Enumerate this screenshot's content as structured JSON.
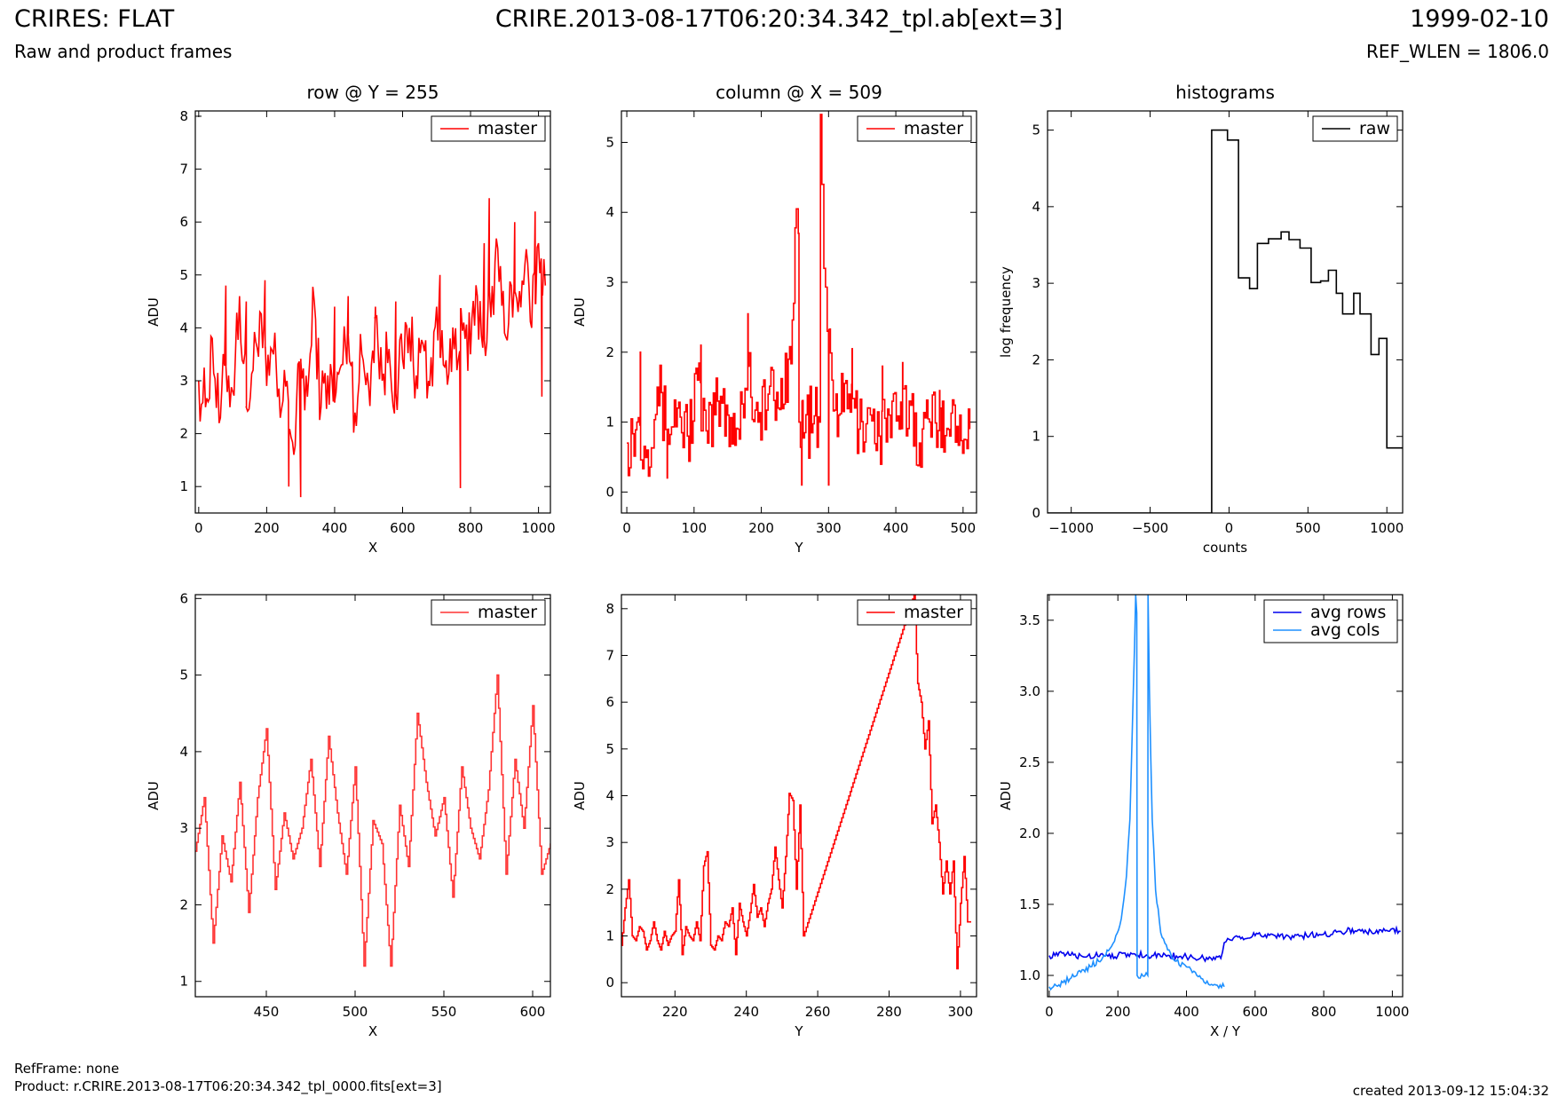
{
  "header": {
    "title": "CRIRES: FLAT",
    "subtitle": "Raw and product frames",
    "file": "CRIRE.2013-08-17T06:20:34.342_tpl.ab[ext=3]",
    "date": "1999-02-10",
    "ref_wlen": "REF_WLEN = 1806.0"
  },
  "footer": {
    "ref_frame": "RefFrame: none",
    "product": "Product: r.CRIRE.2013-08-17T06:20:34.342_tpl_0000.fits[ext=3]",
    "created": "created 2013-09-12 15:04:32"
  },
  "colors": {
    "red": "#ff0000",
    "light_red": "#ff3333",
    "black": "#000000",
    "blue": "#0000ee",
    "light_blue": "#1e90ff"
  },
  "chart_data": [
    {
      "id": "row",
      "type": "line",
      "title": "row @ Y = 255",
      "xlabel": "X",
      "ylabel": "ADU",
      "xlim": [
        -10,
        1035
      ],
      "ylim": [
        0.5,
        8.1
      ],
      "xticks": [
        0,
        200,
        400,
        600,
        800,
        1000
      ],
      "yticks": [
        1,
        2,
        3,
        4,
        5,
        6,
        7,
        8
      ],
      "legend": "top-right",
      "series": [
        {
          "name": "master",
          "color": "#ff0000",
          "step": false,
          "x": [
            0,
            20,
            40,
            60,
            80,
            100,
            120,
            140,
            160,
            180,
            200,
            220,
            240,
            260,
            280,
            300,
            320,
            340,
            360,
            380,
            400,
            420,
            440,
            460,
            480,
            500,
            520,
            540,
            560,
            580,
            600,
            620,
            640,
            660,
            680,
            700,
            720,
            740,
            760,
            780,
            800,
            820,
            840,
            860,
            880,
            900,
            920,
            940,
            960,
            980,
            1000,
            1020
          ],
          "y": [
            3.0,
            2.5,
            3.8,
            2.2,
            3.3,
            2.8,
            4.6,
            2.5,
            3.2,
            4.3,
            2.9,
            3.5,
            2.3,
            3.0,
            1.6,
            3.4,
            2.7,
            4.5,
            2.5,
            3.1,
            2.6,
            3.3,
            3.9,
            2.4,
            3.5,
            2.9,
            4.2,
            3.0,
            3.6,
            2.8,
            3.4,
            4.0,
            3.1,
            3.7,
            2.9,
            4.4,
            3.3,
            3.8,
            3.2,
            4.1,
            3.5,
            4.6,
            3.8,
            4.2,
            5.5,
            3.9,
            4.8,
            4.3,
            5.2,
            4.0,
            5.6,
            4.8
          ],
          "spikes_x": [
            80,
            140,
            195,
            265,
            300,
            400,
            440,
            520,
            580,
            710,
            770,
            840,
            855,
            930,
            990,
            1010
          ],
          "spikes_y": [
            4.8,
            4.5,
            4.9,
            1.0,
            0.8,
            4.4,
            4.6,
            4.4,
            4.5,
            5.0,
            0.97,
            5.6,
            6.45,
            6.0,
            6.2,
            2.7
          ]
        }
      ]
    },
    {
      "id": "column",
      "type": "line",
      "title": "column @ X = 509",
      "xlabel": "Y",
      "ylabel": "ADU",
      "xlim": [
        -8,
        520
      ],
      "ylim": [
        -0.3,
        5.45
      ],
      "xticks": [
        0,
        100,
        200,
        300,
        400,
        500
      ],
      "yticks": [
        0,
        1,
        2,
        3,
        4,
        5
      ],
      "legend": "top-right",
      "series": [
        {
          "name": "master",
          "color": "#ff0000",
          "step": true,
          "x": [
            0,
            15,
            30,
            45,
            60,
            75,
            90,
            105,
            120,
            135,
            150,
            165,
            180,
            195,
            210,
            225,
            240,
            248,
            252,
            255,
            256,
            287,
            288,
            290,
            293,
            298,
            305,
            315,
            330,
            345,
            360,
            375,
            390,
            405,
            420,
            435,
            450,
            465,
            480,
            495,
            510
          ],
          "y": [
            0.7,
            1.0,
            0.6,
            1.5,
            0.9,
            1.2,
            0.8,
            1.6,
            0.7,
            1.3,
            1.1,
            0.9,
            1.8,
            1.0,
            1.4,
            1.2,
            1.9,
            2.7,
            4.05,
            3.7,
            1.0,
            1.0,
            5.4,
            4.4,
            3.2,
            2.3,
            1.6,
            1.1,
            1.4,
            0.9,
            1.2,
            0.8,
            1.1,
            0.9,
            1.3,
            0.7,
            1.0,
            1.2,
            0.8,
            1.1,
            0.9
          ],
          "spikes_x": [
            20,
            60,
            110,
            180,
            260,
            300,
            335,
            380,
            410,
            465
          ],
          "spikes_y": [
            2.0,
            0.2,
            2.1,
            2.55,
            0.1,
            0.1,
            2.05,
            1.8,
            1.85,
            1.45
          ]
        }
      ]
    },
    {
      "id": "histogram",
      "type": "line",
      "title": "histograms",
      "xlabel": "counts",
      "ylabel": "log frequency",
      "xlim": [
        -1150,
        1100
      ],
      "ylim": [
        0,
        5.25
      ],
      "xticks": [
        -1000,
        -500,
        0,
        500,
        1000
      ],
      "yticks": [
        0,
        1,
        2,
        3,
        4,
        5
      ],
      "legend": "top-right",
      "series": [
        {
          "name": "raw",
          "color": "#000000",
          "step": true,
          "x": [
            -1150,
            -110,
            -110,
            -10,
            -10,
            60,
            60,
            130,
            130,
            180,
            180,
            250,
            250,
            330,
            330,
            380,
            380,
            450,
            450,
            520,
            520,
            580,
            580,
            630,
            630,
            680,
            680,
            720,
            720,
            790,
            790,
            830,
            830,
            900,
            900,
            950,
            950,
            1000,
            1000,
            1100
          ],
          "y": [
            0,
            0,
            5.0,
            5.0,
            4.87,
            4.87,
            3.07,
            3.07,
            2.93,
            2.93,
            3.52,
            3.52,
            3.58,
            3.58,
            3.67,
            3.67,
            3.57,
            3.57,
            3.46,
            3.46,
            3.01,
            3.01,
            3.03,
            3.03,
            3.17,
            3.17,
            2.87,
            2.87,
            2.6,
            2.6,
            2.87,
            2.87,
            2.6,
            2.6,
            2.07,
            2.07,
            2.28,
            2.28,
            0.85,
            0.85
          ]
        }
      ]
    },
    {
      "id": "row-zoom",
      "type": "line",
      "title": "",
      "xlabel": "X",
      "ylabel": "ADU",
      "xlim": [
        410,
        610
      ],
      "ylim": [
        0.8,
        6.05
      ],
      "xticks": [
        450,
        500,
        550,
        600
      ],
      "yticks": [
        1,
        2,
        3,
        4,
        5,
        6
      ],
      "legend": "top-right",
      "series": [
        {
          "name": "master",
          "color": "#ff3333",
          "step": true,
          "x": [
            410,
            415,
            420,
            425,
            430,
            435,
            440,
            445,
            450,
            455,
            460,
            465,
            470,
            475,
            480,
            485,
            490,
            495,
            500,
            505,
            510,
            515,
            520,
            525,
            530,
            535,
            540,
            545,
            550,
            555,
            560,
            565,
            570,
            575,
            580,
            585,
            590,
            595,
            600,
            605,
            610
          ],
          "y": [
            2.7,
            3.4,
            1.5,
            2.9,
            2.3,
            3.6,
            1.9,
            3.4,
            4.3,
            2.2,
            3.2,
            2.6,
            3.0,
            3.9,
            2.5,
            4.2,
            3.2,
            2.4,
            3.8,
            1.2,
            3.1,
            2.8,
            1.2,
            3.3,
            2.5,
            4.5,
            3.6,
            2.9,
            3.4,
            2.1,
            3.8,
            3.0,
            2.6,
            3.5,
            5.0,
            2.4,
            3.9,
            3.0,
            4.6,
            2.4,
            2.8
          ]
        }
      ]
    },
    {
      "id": "column-zoom",
      "type": "line",
      "title": "",
      "xlabel": "Y",
      "ylabel": "ADU",
      "xlim": [
        205,
        304.5
      ],
      "ylim": [
        -0.3,
        8.3
      ],
      "xticks": [
        220,
        240,
        260,
        280,
        300
      ],
      "yticks": [
        0,
        1,
        2,
        3,
        4,
        5,
        6,
        7,
        8
      ],
      "legend": "top-right",
      "series": [
        {
          "name": "master",
          "color": "#ff0000",
          "step": true,
          "x": [
            205,
            206,
            207,
            208,
            209,
            210,
            211,
            212,
            213,
            214,
            215,
            216,
            217,
            218,
            219,
            220,
            221,
            222,
            223,
            224,
            225,
            226,
            227,
            228,
            229,
            230,
            231,
            232,
            233,
            234,
            235,
            236,
            237,
            238,
            239,
            240,
            241,
            242,
            243,
            244,
            245,
            246,
            247,
            248,
            249,
            250,
            251,
            252,
            253,
            254,
            255,
            256,
            287,
            288,
            289,
            290,
            291,
            292,
            293,
            294,
            295,
            296,
            297,
            298,
            299,
            300,
            301,
            302,
            303
          ],
          "y": [
            0.8,
            1.6,
            2.2,
            1.0,
            0.9,
            1.2,
            1.1,
            0.7,
            0.9,
            1.3,
            0.9,
            0.7,
            1.1,
            0.8,
            1.0,
            1.1,
            2.2,
            0.6,
            1.2,
            1.0,
            0.9,
            1.3,
            0.9,
            2.5,
            2.8,
            0.8,
            0.7,
            1.0,
            0.9,
            1.3,
            1.2,
            1.6,
            0.6,
            1.7,
            1.3,
            1.0,
            1.5,
            2.1,
            1.4,
            1.6,
            1.2,
            1.7,
            2.0,
            2.9,
            2.2,
            1.6,
            2.7,
            4.05,
            3.9,
            2.0,
            3.8,
            1.0,
            8.3,
            6.4,
            6.0,
            5.0,
            5.6,
            3.4,
            3.8,
            3.0,
            1.9,
            2.6,
            1.9,
            2.6,
            0.3,
            1.7,
            2.7,
            1.3,
            1.3
          ]
        }
      ]
    },
    {
      "id": "averages",
      "type": "line",
      "title": "",
      "xlabel": "X / Y",
      "ylabel": "ADU",
      "xlim": [
        -5,
        1030
      ],
      "ylim": [
        0.85,
        3.68
      ],
      "xticks": [
        0,
        200,
        400,
        600,
        800,
        1000
      ],
      "yticks": [
        1.0,
        1.5,
        2.0,
        2.5,
        3.0,
        3.5
      ],
      "legend": "top-right",
      "series": [
        {
          "name": "avg rows",
          "color": "#0000ee",
          "step": false,
          "x": [
            0,
            50,
            100,
            150,
            200,
            250,
            300,
            350,
            400,
            450,
            500,
            510,
            520,
            550,
            600,
            650,
            700,
            750,
            800,
            850,
            900,
            950,
            1000,
            1024
          ],
          "y": [
            1.14,
            1.15,
            1.13,
            1.15,
            1.14,
            1.15,
            1.14,
            1.14,
            1.13,
            1.12,
            1.12,
            1.23,
            1.26,
            1.27,
            1.28,
            1.29,
            1.27,
            1.28,
            1.29,
            1.31,
            1.32,
            1.3,
            1.33,
            1.31
          ]
        },
        {
          "name": "avg cols",
          "color": "#1e90ff",
          "step": false,
          "x": [
            0,
            40,
            80,
            120,
            160,
            190,
            210,
            225,
            235,
            245,
            252,
            255,
            256,
            287,
            288,
            292,
            300,
            310,
            325,
            345,
            370,
            400,
            430,
            460,
            490,
            510
          ],
          "y": [
            0.92,
            0.95,
            1.0,
            1.06,
            1.14,
            1.24,
            1.4,
            1.7,
            2.1,
            3.0,
            3.68,
            3.55,
            1.0,
            1.0,
            3.68,
            3.0,
            2.1,
            1.6,
            1.3,
            1.18,
            1.1,
            1.06,
            1.0,
            0.96,
            0.93,
            0.92
          ]
        }
      ]
    }
  ]
}
